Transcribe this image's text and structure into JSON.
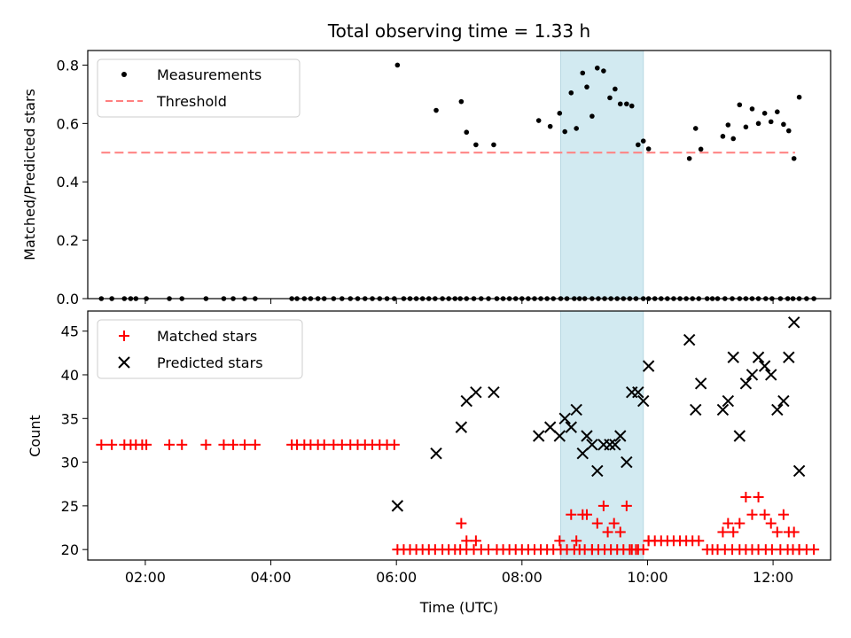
{
  "chart_data": [
    {
      "type": "scatter",
      "title": "Total observing time = 1.33 h",
      "ylabel": "Matched/Predicted stars",
      "xlabel": "",
      "xlim": [
        "01:05",
        "12:55"
      ],
      "ylim": [
        0,
        0.85
      ],
      "yticks": [
        0.0,
        0.2,
        0.4,
        0.6,
        0.8
      ],
      "ytick_labels": [
        "0.0",
        "0.2",
        "0.4",
        "0.6",
        "0.8"
      ],
      "xticks": [
        "02:00",
        "04:00",
        "06:00",
        "08:00",
        "10:00",
        "12:00"
      ],
      "highlight_span": {
        "x": [
          "08:37",
          "09:56"
        ],
        "color": "#d2eaf1"
      },
      "legend": {
        "location": "upper left",
        "entries": [
          "Measurements",
          "Threshold"
        ]
      },
      "series": [
        {
          "name": "Measurements",
          "marker": "dot",
          "color": "#000000",
          "x": [
            "01:18",
            "01:28",
            "01:40",
            "01:46",
            "01:51",
            "02:01",
            "02:23",
            "02:35",
            "02:58",
            "03:15",
            "03:24",
            "03:35",
            "03:45",
            "04:20",
            "04:25",
            "04:32",
            "04:38",
            "04:45",
            "04:51",
            "05:00",
            "05:08",
            "05:16",
            "05:23",
            "05:30",
            "05:37",
            "05:44",
            "05:51",
            "05:58",
            "06:01",
            "06:07",
            "06:13",
            "06:19",
            "06:25",
            "06:31",
            "06:37",
            "06:44",
            "06:50",
            "06:56",
            "07:01",
            "07:07",
            "07:14",
            "07:21",
            "07:28",
            "07:36",
            "07:42",
            "07:48",
            "07:54",
            "08:00",
            "08:06",
            "08:12",
            "08:18",
            "08:24",
            "08:30",
            "08:37",
            "08:43",
            "08:50",
            "08:55",
            "09:00",
            "09:07",
            "09:13",
            "09:19",
            "09:25",
            "09:31",
            "09:37",
            "09:43",
            "09:49",
            "09:56",
            "10:01",
            "10:07",
            "10:13",
            "10:19",
            "10:25",
            "10:31",
            "10:37",
            "10:43",
            "10:49",
            "10:57",
            "11:02",
            "11:07",
            "11:14",
            "11:21",
            "11:28",
            "11:34",
            "11:40",
            "11:46",
            "11:53",
            "11:59",
            "12:07",
            "12:14",
            "12:19",
            "12:25",
            "12:32",
            "12:39"
          ],
          "y": [
            0,
            0,
            0,
            0,
            0,
            0,
            0,
            0,
            0,
            0,
            0,
            0,
            0,
            0,
            0,
            0,
            0,
            0,
            0,
            0,
            0,
            0,
            0,
            0,
            0,
            0,
            0,
            0,
            0.8,
            0,
            0,
            0,
            0,
            0,
            0,
            0,
            0,
            0,
            0,
            0,
            0,
            0,
            0,
            0,
            0,
            0,
            0,
            0,
            0,
            0,
            0,
            0,
            0,
            0,
            0,
            0,
            0,
            0,
            0,
            0,
            0,
            0,
            0,
            0,
            0,
            0,
            0,
            0,
            0,
            0,
            0,
            0,
            0,
            0,
            0,
            0,
            0,
            0,
            0,
            0,
            0,
            0,
            0,
            0,
            0,
            0,
            0,
            0,
            0,
            0,
            0,
            0,
            0
          ]
        },
        {
          "name": "Measurements",
          "marker": "dot",
          "color": "#000000",
          "x": [
            "06:38",
            "07:02",
            "07:07",
            "07:16",
            "07:33",
            "08:16",
            "08:27",
            "08:36",
            "08:41",
            "08:47",
            "08:52",
            "08:58",
            "09:02",
            "09:07",
            "09:12",
            "09:18",
            "09:24",
            "09:29",
            "09:34",
            "09:40",
            "09:45",
            "09:51",
            "09:56",
            "10:01",
            "10:40",
            "10:46",
            "10:51",
            "11:12",
            "11:17",
            "11:22",
            "11:28",
            "11:34",
            "11:40",
            "11:46",
            "11:52",
            "11:58",
            "12:04",
            "12:10",
            "12:15",
            "12:20",
            "12:25"
          ],
          "y": [
            0.645,
            0.675,
            0.57,
            0.527,
            0.527,
            0.61,
            0.59,
            0.635,
            0.572,
            0.705,
            0.583,
            0.773,
            0.725,
            0.625,
            0.79,
            0.78,
            0.688,
            0.718,
            0.667,
            0.667,
            0.66,
            0.527,
            0.54,
            0.513,
            0.48,
            0.583,
            0.512,
            0.556,
            0.595,
            0.548,
            0.664,
            0.588,
            0.65,
            0.6,
            0.635,
            0.606,
            0.64,
            0.597,
            0.575,
            0.48,
            0.69
          ]
        },
        {
          "name": "Threshold",
          "type": "line",
          "style": "dashed",
          "color": "#ff7f7f",
          "x": [
            "01:18",
            "12:21"
          ],
          "y": [
            0.5,
            0.5
          ]
        }
      ]
    },
    {
      "type": "scatter",
      "title": "",
      "ylabel": "Count",
      "xlabel": "Time (UTC)",
      "xlim": [
        "01:05",
        "12:55"
      ],
      "ylim": [
        18.8,
        47.3
      ],
      "yticks": [
        20,
        25,
        30,
        35,
        40,
        45
      ],
      "ytick_labels": [
        "20",
        "25",
        "30",
        "35",
        "40",
        "45"
      ],
      "xticks": [
        "02:00",
        "04:00",
        "06:00",
        "08:00",
        "10:00",
        "12:00"
      ],
      "xtick_labels": [
        "02:00",
        "04:00",
        "06:00",
        "08:00",
        "10:00",
        "12:00"
      ],
      "highlight_span": {
        "x": [
          "08:37",
          "09:56"
        ],
        "color": "#d2eaf1"
      },
      "legend": {
        "location": "upper left",
        "entries": [
          "Matched stars",
          "Predicted stars"
        ]
      },
      "series": [
        {
          "name": "Matched stars",
          "marker": "plus",
          "color": "#ff0000",
          "x": [
            "01:18",
            "01:28",
            "01:40",
            "01:46",
            "01:51",
            "01:57",
            "02:01",
            "02:23",
            "02:35",
            "02:58",
            "03:15",
            "03:24",
            "03:35",
            "03:45",
            "04:20",
            "04:25",
            "04:32",
            "04:38",
            "04:45",
            "04:51",
            "05:00",
            "05:08",
            "05:16",
            "05:23",
            "05:30",
            "05:37",
            "05:44",
            "05:51",
            "05:58",
            "06:01",
            "06:07",
            "06:13",
            "06:19",
            "06:25",
            "06:31",
            "06:37",
            "06:44",
            "06:50",
            "06:56",
            "07:01",
            "07:07",
            "07:14",
            "07:21",
            "07:28",
            "07:36",
            "07:42",
            "07:48",
            "07:54",
            "08:00",
            "08:06",
            "08:12",
            "08:18",
            "08:24",
            "08:30",
            "08:37",
            "08:43",
            "08:50",
            "08:55",
            "09:00",
            "09:07",
            "09:13",
            "09:19",
            "09:25",
            "09:31",
            "09:37",
            "09:43",
            "09:49",
            "09:56",
            "10:01",
            "10:07",
            "10:13",
            "10:19",
            "10:25",
            "10:31",
            "10:37",
            "10:43",
            "10:49",
            "10:57",
            "11:02",
            "11:07",
            "11:14",
            "11:21",
            "11:28",
            "11:34",
            "11:40",
            "11:46",
            "11:53",
            "11:59",
            "12:07",
            "12:14",
            "12:19",
            "12:25",
            "12:32",
            "12:39",
            "08:36",
            "08:47",
            "08:52",
            "08:58",
            "09:02",
            "09:07",
            "09:12",
            "09:18",
            "09:22",
            "09:28",
            "09:34",
            "09:40",
            "09:45",
            "09:51",
            "10:01",
            "11:12",
            "11:17",
            "11:22",
            "11:28",
            "11:34",
            "11:40",
            "11:46",
            "11:52",
            "11:58",
            "12:04",
            "12:10",
            "12:15",
            "12:20",
            "12:25",
            "07:02",
            "07:07",
            "07:16"
          ],
          "y": [
            32,
            32,
            32,
            32,
            32,
            32,
            32,
            32,
            32,
            32,
            32,
            32,
            32,
            32,
            32,
            32,
            32,
            32,
            32,
            32,
            32,
            32,
            32,
            32,
            32,
            32,
            32,
            32,
            32,
            20,
            20,
            20,
            20,
            20,
            20,
            20,
            20,
            20,
            20,
            20,
            20,
            20,
            20,
            20,
            20,
            20,
            20,
            20,
            20,
            20,
            20,
            20,
            20,
            20,
            20,
            20,
            20,
            20,
            20,
            20,
            20,
            20,
            20,
            20,
            20,
            20,
            20,
            20,
            21,
            21,
            21,
            21,
            21,
            21,
            21,
            21,
            21,
            20,
            20,
            20,
            20,
            20,
            20,
            20,
            20,
            20,
            20,
            20,
            20,
            20,
            20,
            20,
            20,
            20,
            21,
            24,
            21,
            24,
            24,
            20,
            23,
            25,
            22,
            23,
            22,
            25,
            20,
            20,
            21,
            22,
            23,
            22,
            23,
            26,
            24,
            26,
            24,
            23,
            22,
            24,
            22,
            22,
            20,
            23,
            21,
            21
          ]
        },
        {
          "name": "Predicted stars",
          "marker": "x",
          "color": "#000000",
          "x": [
            "06:01",
            "06:38",
            "07:02",
            "07:07",
            "07:16",
            "07:33",
            "08:16",
            "08:27",
            "08:36",
            "08:41",
            "08:47",
            "08:52",
            "08:58",
            "09:02",
            "09:07",
            "09:12",
            "09:18",
            "09:24",
            "09:29",
            "09:34",
            "09:40",
            "09:45",
            "09:51",
            "09:56",
            "10:01",
            "10:40",
            "10:46",
            "10:51",
            "11:12",
            "11:17",
            "11:22",
            "11:28",
            "11:34",
            "11:40",
            "11:46",
            "11:52",
            "11:58",
            "12:04",
            "12:10",
            "12:15",
            "12:20",
            "12:25"
          ],
          "y": [
            25,
            31,
            34,
            37,
            38,
            38,
            33,
            34,
            33,
            35,
            34,
            36,
            31,
            33,
            32,
            29,
            32,
            32,
            32,
            33,
            30,
            38,
            38,
            37,
            41,
            44,
            36,
            39,
            36,
            37,
            42,
            33,
            39,
            40,
            42,
            41,
            40,
            36,
            37,
            42,
            46,
            29
          ]
        }
      ]
    }
  ]
}
